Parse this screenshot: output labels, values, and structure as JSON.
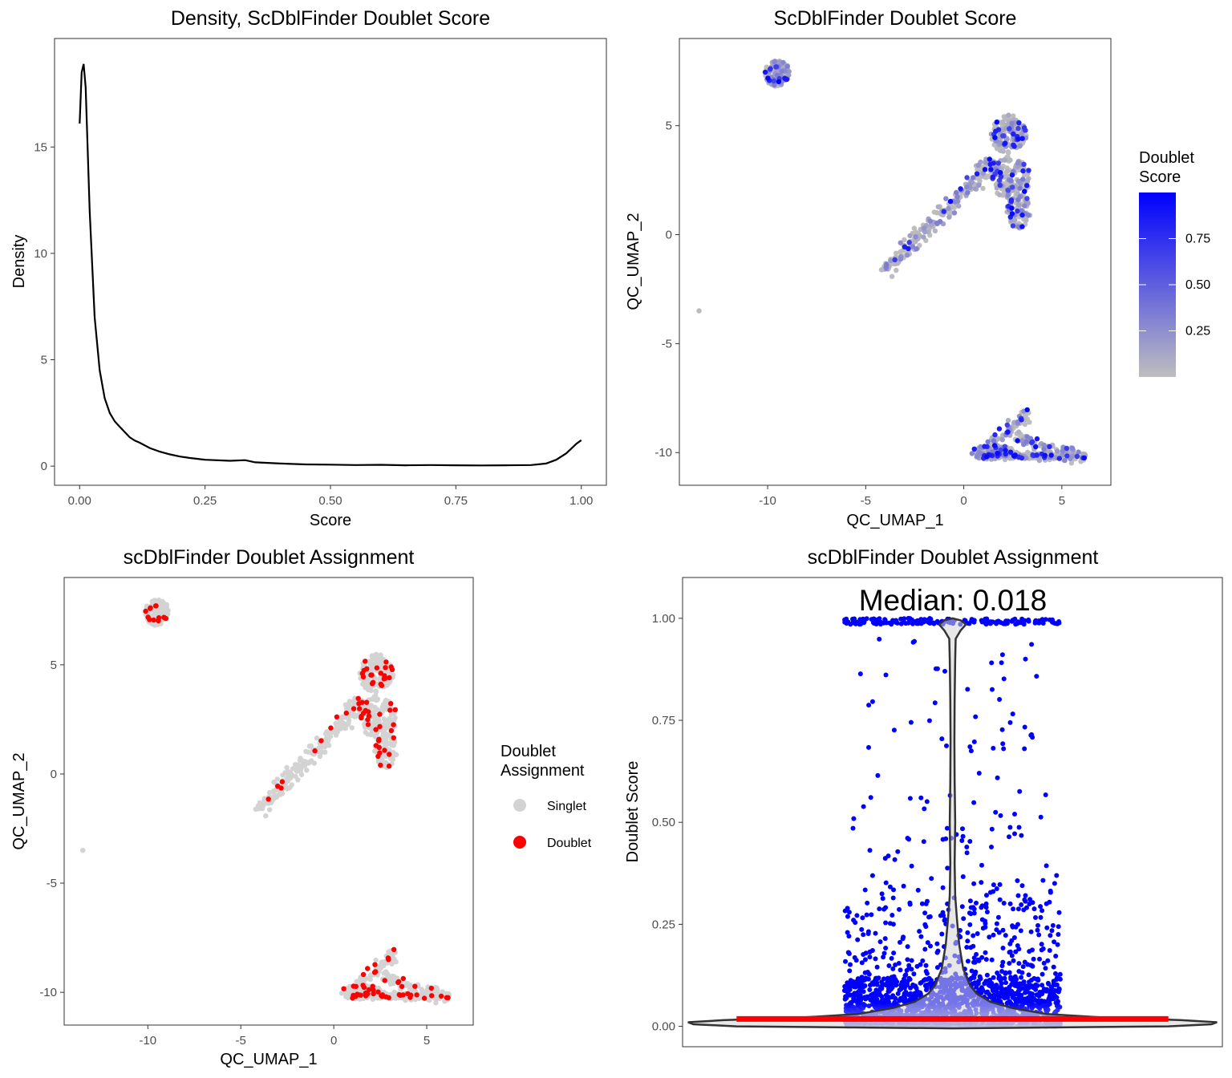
{
  "chart_data": [
    {
      "id": "density",
      "type": "line",
      "title": "Density, ScDblFinder Doublet Score",
      "xlabel": "Score",
      "ylabel": "Density",
      "xlim": [
        -0.05,
        1.05
      ],
      "ylim": [
        -0.9,
        20.1
      ],
      "xticks": [
        0,
        0.25,
        0.5,
        0.75,
        1.0
      ],
      "xtick_labels": [
        "0.00",
        "0.25",
        "0.50",
        "0.75",
        "1.00"
      ],
      "yticks": [
        0,
        5,
        10,
        15
      ],
      "ytick_labels": [
        "0",
        "5",
        "10",
        "15"
      ],
      "line_color": "#000000",
      "x": [
        0.0,
        0.004,
        0.008,
        0.012,
        0.02,
        0.03,
        0.04,
        0.05,
        0.06,
        0.07,
        0.08,
        0.09,
        0.1,
        0.11,
        0.12,
        0.14,
        0.16,
        0.18,
        0.2,
        0.22,
        0.25,
        0.3,
        0.33,
        0.35,
        0.4,
        0.45,
        0.5,
        0.55,
        0.6,
        0.65,
        0.7,
        0.75,
        0.8,
        0.85,
        0.9,
        0.93,
        0.95,
        0.97,
        0.99,
        1.0
      ],
      "y": [
        16.1,
        18.5,
        18.9,
        17.8,
        12.0,
        7.0,
        4.5,
        3.2,
        2.5,
        2.1,
        1.85,
        1.6,
        1.35,
        1.2,
        1.1,
        0.85,
        0.68,
        0.55,
        0.45,
        0.38,
        0.3,
        0.25,
        0.28,
        0.18,
        0.12,
        0.08,
        0.07,
        0.05,
        0.06,
        0.04,
        0.05,
        0.04,
        0.03,
        0.04,
        0.05,
        0.12,
        0.3,
        0.6,
        1.05,
        1.22
      ]
    },
    {
      "id": "umap_score",
      "type": "scatter",
      "title": "ScDblFinder Doublet Score",
      "xlabel": "QC_UMAP_1",
      "ylabel": "QC_UMAP_2",
      "xlim": [
        -14.5,
        7.5
      ],
      "ylim": [
        -11.5,
        9.0
      ],
      "xticks": [
        -10,
        -5,
        0,
        5
      ],
      "xtick_labels": [
        "-10",
        "-5",
        "0",
        "5"
      ],
      "yticks": [
        -10,
        -5,
        0,
        5
      ],
      "ytick_labels": [
        "-10",
        "-5",
        "0",
        "5"
      ],
      "legend": {
        "title_line1": "Doublet",
        "title_line2": "Score",
        "type": "gradient",
        "low_color": "#bebebe",
        "high_color": "#0000ff",
        "ticks": [
          0.25,
          0.5,
          0.75
        ],
        "tick_labels": [
          "0.25",
          "0.50",
          "0.75"
        ],
        "range": [
          0.0,
          1.0
        ],
        "position": "right"
      },
      "clusters": [
        {
          "kind": "blob",
          "cx": -9.5,
          "cy": 7.4,
          "rx": 0.65,
          "ry": 0.6,
          "n": 140
        },
        {
          "kind": "blob",
          "cx": 2.3,
          "cy": 4.6,
          "rx": 0.9,
          "ry": 0.9,
          "n": 160
        },
        {
          "kind": "blob",
          "cx": 2.4,
          "cy": 2.6,
          "rx": 1.0,
          "ry": 1.0,
          "n": 150
        },
        {
          "kind": "blob",
          "cx": 1.2,
          "cy": 3.0,
          "rx": 0.6,
          "ry": 0.5,
          "n": 60
        },
        {
          "kind": "blob",
          "cx": 2.8,
          "cy": 1.1,
          "rx": 0.6,
          "ry": 0.8,
          "n": 70
        },
        {
          "kind": "line",
          "x0": -4.1,
          "y0": -1.7,
          "x1": 0.8,
          "y1": 2.6,
          "w": 0.35,
          "n": 180
        },
        {
          "kind": "blob",
          "cx": 1.5,
          "cy": -10.0,
          "rx": 1.1,
          "ry": 0.35,
          "n": 110
        },
        {
          "kind": "line",
          "x0": 1.0,
          "y0": -10.1,
          "x1": 6.3,
          "y1": -10.2,
          "w": 0.18,
          "n": 140
        },
        {
          "kind": "line",
          "x0": 1.3,
          "y0": -9.8,
          "x1": 3.2,
          "y1": -8.2,
          "w": 0.3,
          "n": 60
        },
        {
          "kind": "line",
          "x0": 2.6,
          "y0": -9.3,
          "x1": 5.6,
          "y1": -10.0,
          "w": 0.25,
          "n": 70
        },
        {
          "kind": "point",
          "cx": -13.5,
          "cy": -3.5
        }
      ],
      "doublet_fraction": 0.1
    },
    {
      "id": "umap_assign",
      "type": "scatter",
      "title": "scDblFinder Doublet Assignment",
      "xlabel": "QC_UMAP_1",
      "ylabel": "QC_UMAP_2",
      "xlim": [
        -14.5,
        7.5
      ],
      "ylim": [
        -11.5,
        9.0
      ],
      "xticks": [
        -10,
        -5,
        0,
        5
      ],
      "xtick_labels": [
        "-10",
        "-5",
        "0",
        "5"
      ],
      "yticks": [
        -10,
        -5,
        0,
        5
      ],
      "ytick_labels": [
        "-10",
        "-5",
        "0",
        "5"
      ],
      "legend": {
        "title_line1": "Doublet",
        "title_line2": "Assignment",
        "type": "categorical",
        "items": [
          {
            "label": "Singlet",
            "color": "#d3d3d3"
          },
          {
            "label": "Doublet",
            "color": "#ff0000"
          }
        ],
        "position": "right"
      }
    },
    {
      "id": "violin",
      "type": "violin",
      "title": "scDblFinder Doublet Assignment",
      "xlabel": "",
      "ylabel": "Doublet Score",
      "annotation": "Median: 0.018",
      "median": 0.018,
      "xlim": [
        -1.0,
        1.0
      ],
      "ylim": [
        -0.05,
        1.1
      ],
      "yticks": [
        0,
        0.25,
        0.5,
        0.75,
        1.0
      ],
      "ytick_labels": [
        "0.00",
        "0.25",
        "0.50",
        "0.75",
        "1.00"
      ],
      "jitter_colors": {
        "low": "#b8b3e0",
        "high": "#0000ff"
      },
      "median_color": "#ff0000",
      "violin_fill": "#d3d3d3",
      "violin_outline": "#333333",
      "violin_profile": [
        {
          "y": -0.005,
          "w": 0.0
        },
        {
          "y": 0.0,
          "w": 0.8
        },
        {
          "y": 0.005,
          "w": 0.96
        },
        {
          "y": 0.01,
          "w": 0.98
        },
        {
          "y": 0.015,
          "w": 0.85
        },
        {
          "y": 0.022,
          "w": 0.55
        },
        {
          "y": 0.03,
          "w": 0.35
        },
        {
          "y": 0.045,
          "w": 0.22
        },
        {
          "y": 0.06,
          "w": 0.14
        },
        {
          "y": 0.08,
          "w": 0.09
        },
        {
          "y": 0.1,
          "w": 0.065
        },
        {
          "y": 0.14,
          "w": 0.04
        },
        {
          "y": 0.2,
          "w": 0.025
        },
        {
          "y": 0.26,
          "w": 0.017
        },
        {
          "y": 0.32,
          "w": 0.01
        },
        {
          "y": 0.4,
          "w": 0.008
        },
        {
          "y": 0.5,
          "w": 0.01
        },
        {
          "y": 0.6,
          "w": 0.008
        },
        {
          "y": 0.7,
          "w": 0.007
        },
        {
          "y": 0.8,
          "w": 0.008
        },
        {
          "y": 0.9,
          "w": 0.01
        },
        {
          "y": 0.95,
          "w": 0.012
        },
        {
          "y": 0.97,
          "w": 0.03
        },
        {
          "y": 0.985,
          "w": 0.05
        },
        {
          "y": 0.995,
          "w": 0.03
        },
        {
          "y": 1.0,
          "w": 0.0
        }
      ]
    }
  ]
}
